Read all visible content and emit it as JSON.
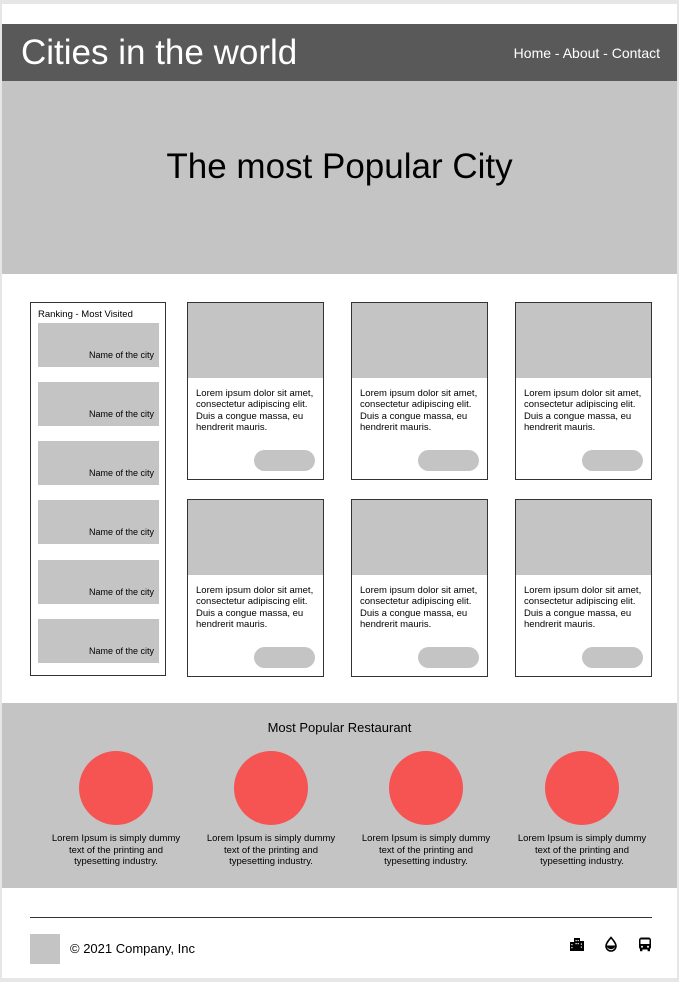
{
  "header": {
    "title": "Cities in the world",
    "nav": {
      "home": "Home",
      "sep1": " - ",
      "about": "About",
      "sep2": " - ",
      "contact": "Contact"
    }
  },
  "hero": {
    "title": "The most Popular City"
  },
  "ranking": {
    "title": "Ranking - Most Visited",
    "items": [
      {
        "label": "Name of the city"
      },
      {
        "label": "Name of the city"
      },
      {
        "label": "Name of the city"
      },
      {
        "label": "Name of the city"
      },
      {
        "label": "Name of the city"
      },
      {
        "label": "Name of the city"
      }
    ]
  },
  "cards": [
    {
      "text": "Lorem ipsum dolor sit amet, consectetur adipiscing elit. Duis a congue massa, eu hendrerit mauris."
    },
    {
      "text": "Lorem ipsum dolor sit amet, consectetur adipiscing elit. Duis a congue massa, eu hendrerit mauris."
    },
    {
      "text": "Lorem ipsum dolor sit amet, consectetur adipiscing elit. Duis a congue massa, eu hendrerit mauris."
    },
    {
      "text": "Lorem ipsum dolor sit amet, consectetur adipiscing elit. Duis a congue massa, eu hendrerit mauris."
    },
    {
      "text": "Lorem ipsum dolor sit amet, consectetur adipiscing elit. Duis a congue massa, eu hendrerit mauris."
    },
    {
      "text": "Lorem ipsum dolor sit amet, consectetur adipiscing elit. Duis a congue massa, eu hendrerit mauris."
    }
  ],
  "restaurants": {
    "title": "Most Popular Restaurant",
    "items": [
      {
        "text": "Lorem Ipsum is simply dummy text of the printing and typesetting industry."
      },
      {
        "text": "Lorem Ipsum is simply dummy text of the printing and typesetting industry."
      },
      {
        "text": "Lorem Ipsum is simply dummy text of the printing and typesetting industry."
      },
      {
        "text": "Lorem Ipsum is simply dummy text of the printing and typesetting industry."
      }
    ]
  },
  "footer": {
    "copyright": "© 2021 Company, Inc",
    "icons": [
      "city-icon",
      "water-drop-icon",
      "bus-icon"
    ]
  },
  "colors": {
    "header_bg": "#595959",
    "placeholder_gray": "#c4c4c4",
    "accent_red": "#f65353"
  }
}
